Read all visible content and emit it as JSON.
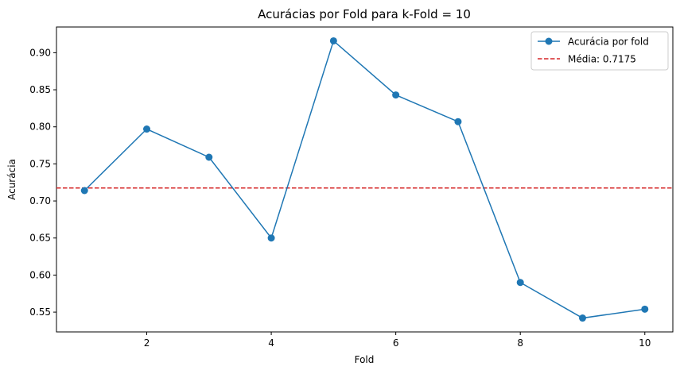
{
  "chart_data": {
    "type": "line",
    "title": "Acurácias por Fold para k-Fold = 10",
    "xlabel": "Fold",
    "ylabel": "Acurácia",
    "x": [
      1,
      2,
      3,
      4,
      5,
      6,
      7,
      8,
      9,
      10
    ],
    "series": [
      {
        "name": "Acurácia por fold",
        "values": [
          0.714,
          0.797,
          0.759,
          0.65,
          0.916,
          0.843,
          0.807,
          0.59,
          0.542,
          0.554
        ],
        "color": "#1f77b4",
        "marker": "circle"
      }
    ],
    "mean_line": {
      "label": "Média: 0.7175",
      "value": 0.7175,
      "color": "#d62728",
      "style": "dashed"
    },
    "xticks": [
      "2",
      "4",
      "6",
      "8",
      "10"
    ],
    "yticks": [
      "0.55",
      "0.60",
      "0.65",
      "0.70",
      "0.75",
      "0.80",
      "0.85",
      "0.90"
    ],
    "xlim": [
      0.55,
      10.45
    ],
    "ylim": [
      0.5233,
      0.9347
    ],
    "grid": false,
    "legend_position": "top-right"
  }
}
